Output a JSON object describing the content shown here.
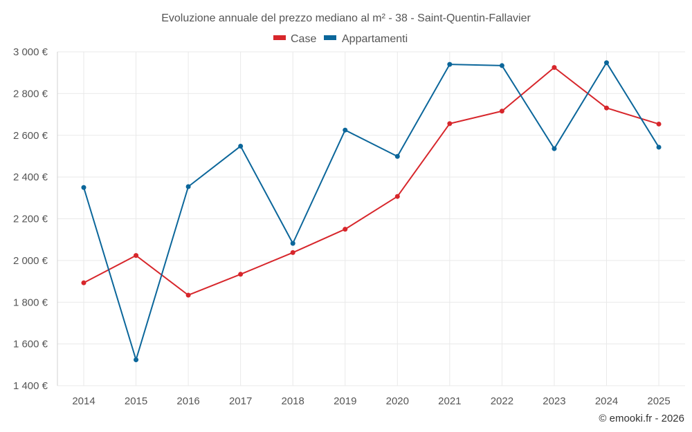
{
  "chart_data": {
    "type": "line",
    "title": "Evoluzione annuale del prezzo mediano al m² - 38 - Saint-Quentin-Fallavier",
    "categories": [
      "2014",
      "2015",
      "2016",
      "2017",
      "2018",
      "2019",
      "2020",
      "2021",
      "2022",
      "2023",
      "2024",
      "2025"
    ],
    "series": [
      {
        "name": "Case",
        "color": "#d7262b",
        "values": [
          1893,
          2024,
          1834,
          1934,
          2038,
          2150,
          2307,
          2656,
          2716,
          2925,
          2731,
          2654
        ]
      },
      {
        "name": "Appartamenti",
        "color": "#0b669a",
        "values": [
          2350,
          1524,
          2354,
          2548,
          2082,
          2625,
          2499,
          2940,
          2934,
          2536,
          2948,
          2543
        ]
      }
    ],
    "y_ticks": [
      "3 000 €",
      "2 800 €",
      "2 600 €",
      "2 400 €",
      "2 200 €",
      "2 000 €",
      "1 800 €",
      "1 600 €",
      "1 400 €"
    ],
    "ylim": [
      1400,
      3000
    ],
    "xlabel": "",
    "ylabel": "",
    "legend_position": "top-center",
    "grid": true
  },
  "credit": "© emooki.fr - 2026"
}
